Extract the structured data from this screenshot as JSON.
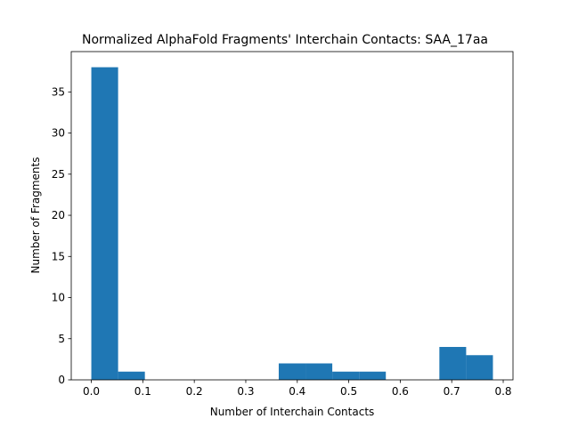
{
  "chart_data": {
    "type": "bar",
    "title": "Normalized AlphaFold Fragments' Interchain Contacts: SAA_17aa",
    "xlabel": "Number of Interchain Contacts",
    "ylabel": "Number of Fragments",
    "xlim": [
      -0.039,
      0.819
    ],
    "ylim": [
      0,
      39.9
    ],
    "xticks": [
      "0.0",
      "0.1",
      "0.2",
      "0.3",
      "0.4",
      "0.5",
      "0.6",
      "0.7",
      "0.8"
    ],
    "yticks": [
      "0",
      "5",
      "10",
      "15",
      "20",
      "25",
      "30",
      "35"
    ],
    "bin_edges": [
      0.0,
      0.052,
      0.104,
      0.156,
      0.208,
      0.26,
      0.312,
      0.364,
      0.416,
      0.468,
      0.52,
      0.572,
      0.624,
      0.676,
      0.728,
      0.78
    ],
    "values": [
      38,
      1,
      0,
      0,
      0,
      0,
      0,
      2,
      2,
      1,
      1,
      0,
      0,
      4,
      3
    ],
    "bar_color": "#1f77b4",
    "grid": false,
    "legend": "none"
  }
}
